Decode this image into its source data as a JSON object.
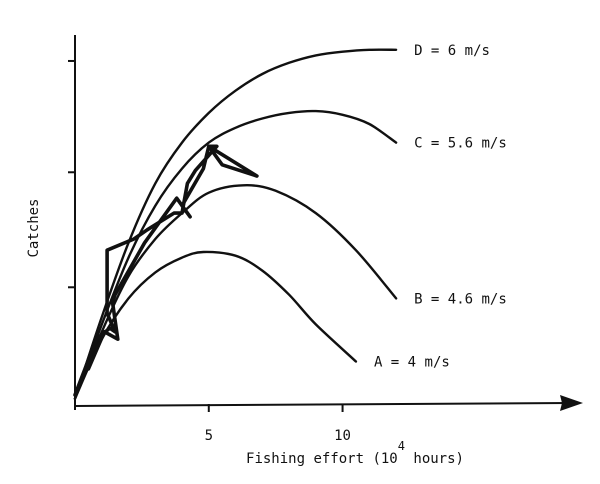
{
  "chart_data": {
    "type": "line",
    "xlabel": "Fishing effort (10",
    "xlabel_exponent": "4",
    "xlabel_suffix": " hours)",
    "ylabel": "Catches",
    "xlim": [
      0,
      18.5
    ],
    "ylim": [
      0,
      10
    ],
    "x_ticks": [
      5,
      10
    ],
    "y_ticks": [
      3.2,
      6.3,
      9.3
    ],
    "series": [
      {
        "name": "A = 4   m/s",
        "x": [
          0,
          1,
          2,
          3,
          4,
          4.8,
          6,
          7,
          8,
          9,
          10.5
        ],
        "y": [
          0.2,
          1.8,
          2.9,
          3.6,
          4.0,
          4.15,
          4.05,
          3.65,
          3.0,
          2.2,
          1.2
        ]
      },
      {
        "name": "B = 4.6 m/s",
        "x": [
          0,
          1,
          2,
          3,
          4,
          5,
          6.3,
          7.5,
          9,
          10.5,
          12
        ],
        "y": [
          0.2,
          2.0,
          3.5,
          4.5,
          5.2,
          5.75,
          5.95,
          5.8,
          5.2,
          4.2,
          2.9
        ]
      },
      {
        "name": "C = 5.6 m/s",
        "x": [
          0,
          1,
          2,
          3,
          4,
          5,
          6,
          7,
          8,
          9,
          10,
          11,
          12
        ],
        "y": [
          0.2,
          2.2,
          4.0,
          5.4,
          6.4,
          7.1,
          7.5,
          7.75,
          7.9,
          7.95,
          7.85,
          7.6,
          7.1
        ]
      },
      {
        "name": "D = 6   m/s",
        "x": [
          0,
          1,
          2,
          3,
          4,
          5,
          6,
          7,
          8,
          9,
          10,
          11,
          12
        ],
        "y": [
          0.2,
          2.4,
          4.4,
          6.0,
          7.1,
          7.9,
          8.5,
          8.95,
          9.25,
          9.45,
          9.55,
          9.6,
          9.6
        ]
      }
    ],
    "observed": {
      "x": [
        0,
        0.8,
        1.3,
        1.5,
        1.2,
        1.2,
        2.2,
        2.7,
        3.7,
        4.0,
        4.2,
        4.5,
        5.3,
        5.0,
        6.8,
        5.5,
        5.0,
        4.8,
        4.0,
        4.3,
        3.8,
        2.6,
        1.5,
        1.4,
        1.6,
        1.1,
        0.5
      ],
      "y": [
        0.3,
        1.8,
        2.1,
        2.0,
        2.5,
        4.2,
        4.5,
        4.75,
        5.2,
        5.2,
        6.0,
        6.35,
        7.0,
        7.0,
        6.2,
        6.5,
        7.0,
        6.4,
        5.4,
        5.1,
        5.6,
        4.4,
        3.0,
        2.8,
        1.8,
        2.0,
        1.0
      ]
    }
  }
}
